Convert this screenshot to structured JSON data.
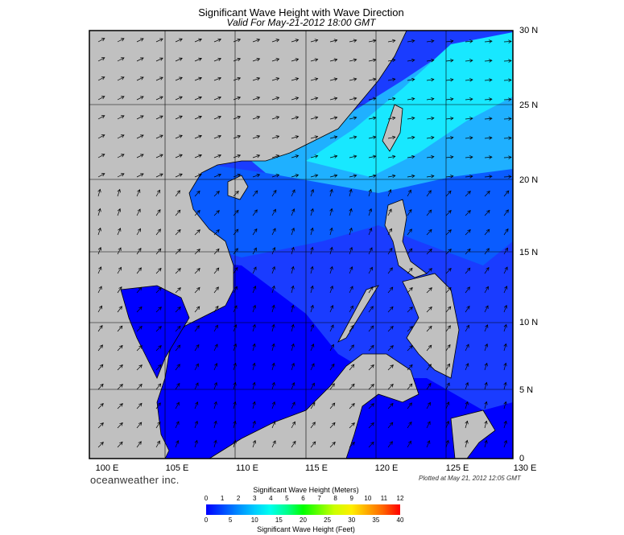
{
  "title": "Significant Wave Height with Wave Direction",
  "subtitle": "Valid For May-21-2012 18:00 GMT",
  "brand": "oceanweather inc.",
  "plotted": "Plotted at May 21, 2012 12:05 GMT",
  "lon_labels": [
    "100 E",
    "105 E",
    "110 E",
    "115 E",
    "120 E",
    "125 E",
    "130 E"
  ],
  "lat_labels": [
    "30 N",
    "25 N",
    "20 N",
    "15 N",
    "10 N",
    "5 N",
    "0"
  ],
  "scale": {
    "meters_title": "Significant Wave Height (Meters)",
    "feet_title": "Significant Wave Height (Feet)",
    "meters_ticks": [
      "0",
      "1",
      "2",
      "3",
      "4",
      "5",
      "6",
      "7",
      "8",
      "9",
      "10",
      "11",
      "12"
    ],
    "feet_ticks": [
      "0",
      "5",
      "10",
      "15",
      "20",
      "25",
      "30",
      "35",
      "40"
    ]
  },
  "colors": {
    "land": "#c0c0c0",
    "deep_blue": "#0000ff",
    "mid_blue": "#0a5cff",
    "light_blue": "#1fb0ff",
    "cyan": "#18e8ff"
  }
}
